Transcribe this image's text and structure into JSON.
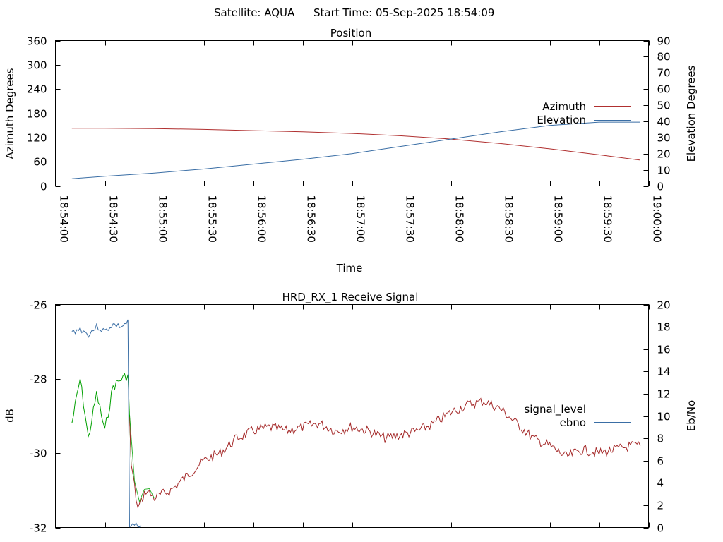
{
  "header": {
    "satellite": "Satellite: AQUA",
    "start_time": "Start Time: 05-Sep-2025 18:54:09"
  },
  "colors": {
    "azimuth": "#b03030",
    "elevation": "#3a6ea5",
    "signal_level": "#a52a2a",
    "signal_level_legend": "#000000",
    "signal_good": "#00a000",
    "ebno": "#3a6ea5"
  },
  "chart_data": [
    {
      "type": "line",
      "title": "Position",
      "xlabel": "Time",
      "ylabel": "Azimuth Degrees",
      "y2label": "Elevation Degrees",
      "xlim": [
        "18:54:00",
        "19:00:00"
      ],
      "xticks": [
        "18:54:00",
        "18:54:30",
        "18:55:00",
        "18:55:30",
        "18:56:00",
        "18:56:30",
        "18:57:00",
        "18:57:30",
        "18:58:00",
        "18:58:30",
        "18:59:00",
        "18:59:30",
        "19:00:00"
      ],
      "ylim": [
        0,
        360
      ],
      "yticks": [
        0,
        60,
        120,
        180,
        240,
        300,
        360
      ],
      "y2lim": [
        0,
        90
      ],
      "y2ticks": [
        0,
        10,
        20,
        30,
        40,
        50,
        60,
        70,
        80,
        90
      ],
      "legend_position": "right",
      "series": [
        {
          "name": "Azimuth",
          "axis": "left",
          "x": [
            "18:54:10",
            "18:54:30",
            "18:55:00",
            "18:55:30",
            "18:56:00",
            "18:56:30",
            "18:57:00",
            "18:57:30",
            "18:58:00",
            "18:58:30",
            "18:59:00",
            "18:59:30",
            "18:59:55"
          ],
          "y": [
            143,
            143,
            142,
            140,
            137,
            134,
            130,
            124,
            116,
            105,
            92,
            77,
            64
          ]
        },
        {
          "name": "Elevation",
          "axis": "right",
          "x": [
            "18:54:10",
            "18:54:30",
            "18:55:00",
            "18:55:30",
            "18:56:00",
            "18:56:30",
            "18:57:00",
            "18:57:30",
            "18:58:00",
            "18:58:30",
            "18:59:00",
            "18:59:30",
            "18:59:55"
          ],
          "y": [
            4.5,
            6.0,
            8.0,
            10.5,
            13.5,
            16.5,
            20.0,
            24.5,
            29.0,
            33.5,
            37.5,
            39.5,
            39.5
          ]
        }
      ]
    },
    {
      "type": "line",
      "title": "HRD_RX_1 Receive Signal",
      "ylabel": "dB",
      "y2label": "Eb/No",
      "xlim": [
        "18:54:00",
        "19:00:00"
      ],
      "ylim": [
        -32,
        -26
      ],
      "yticks": [
        -32,
        -30,
        -28,
        -26
      ],
      "y2lim": [
        0,
        20
      ],
      "y2ticks": [
        0,
        2,
        4,
        6,
        8,
        10,
        12,
        14,
        16,
        18,
        20
      ],
      "xtick_labels_shown": false,
      "legend_position": "right",
      "series": [
        {
          "name": "signal_level",
          "axis": "left",
          "x": [
            "18:54:10",
            "18:54:15",
            "18:54:20",
            "18:54:25",
            "18:54:30",
            "18:54:35",
            "18:54:40",
            "18:54:44",
            "18:54:46",
            "18:54:50",
            "18:54:55",
            "18:55:00",
            "18:55:10",
            "18:55:20",
            "18:55:30",
            "18:55:40",
            "18:55:50",
            "18:56:00",
            "18:56:10",
            "18:56:20",
            "18:56:30",
            "18:56:40",
            "18:56:50",
            "18:57:00",
            "18:57:10",
            "18:57:20",
            "18:57:30",
            "18:57:40",
            "18:57:50",
            "18:58:00",
            "18:58:05",
            "18:58:10",
            "18:58:20",
            "18:58:30",
            "18:58:40",
            "18:58:50",
            "18:59:00",
            "18:59:10",
            "18:59:20",
            "18:59:30",
            "18:59:40",
            "18:59:50",
            "18:59:55"
          ],
          "y": [
            -29.2,
            -28.0,
            -29.6,
            -28.4,
            -29.4,
            -28.2,
            -28.0,
            -27.9,
            -30.3,
            -31.5,
            -31.0,
            -31.2,
            -31.0,
            -30.6,
            -30.2,
            -30.0,
            -29.6,
            -29.4,
            -29.3,
            -29.4,
            -29.3,
            -29.2,
            -29.4,
            -29.3,
            -29.4,
            -29.6,
            -29.5,
            -29.4,
            -29.2,
            -28.9,
            -28.8,
            -28.7,
            -28.6,
            -28.8,
            -29.2,
            -29.6,
            -29.8,
            -30.1,
            -29.9,
            -30.0,
            -29.9,
            -29.8,
            -29.8
          ]
        },
        {
          "name": "ebno",
          "axis": "right",
          "x": [
            "18:54:10",
            "18:54:15",
            "18:54:20",
            "18:54:25",
            "18:54:30",
            "18:54:35",
            "18:54:40",
            "18:54:44",
            "18:54:45",
            "18:54:50",
            "18:54:52"
          ],
          "y": [
            17.5,
            17.8,
            17.3,
            18.0,
            17.6,
            18.2,
            18.0,
            18.4,
            0,
            0.3,
            0.2
          ]
        }
      ]
    }
  ]
}
